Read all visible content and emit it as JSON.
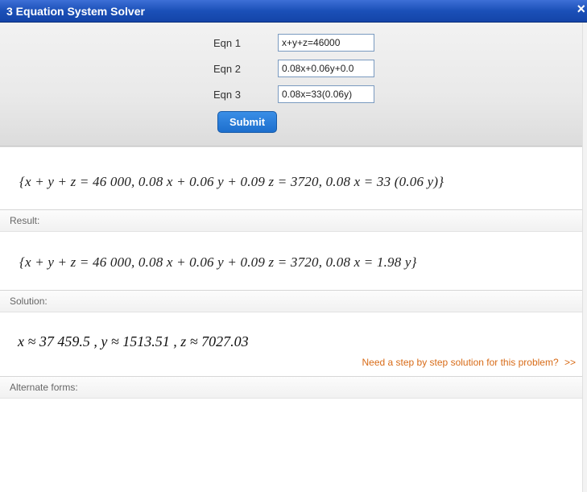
{
  "window": {
    "title": "3 Equation System Solver",
    "close_glyph": "×"
  },
  "form": {
    "rows": [
      {
        "label": "Eqn 1",
        "value": "x+y+z=46000"
      },
      {
        "label": "Eqn 2",
        "value": "0.08x+0.06y+0.0"
      },
      {
        "label": "Eqn 3",
        "value": "0.08x=33(0.06y)"
      }
    ],
    "submit_label": "Submit"
  },
  "input_echo": "{x + y + z = 46 000, 0.08 x + 0.06 y + 0.09 z = 3720, 0.08 x = 33 (0.06 y)}",
  "sections": {
    "result": {
      "header": "Result:",
      "body": "{x + y + z = 46 000, 0.08 x + 0.06 y + 0.09 z = 3720, 0.08 x = 1.98 y}"
    },
    "solution": {
      "header": "Solution:",
      "body": "x ≈ 37 459.5 ,   y ≈ 1513.51 ,   z ≈ 7027.03"
    },
    "alternate_forms": {
      "header": "Alternate forms:"
    }
  },
  "help_link": {
    "text": "Need a step by step solution for this problem?",
    "chevrons": ">>"
  },
  "colors": {
    "titlebar_top": "#3d6fd6",
    "titlebar_bottom": "#1444a8",
    "form_bg_top": "#f2f2f2",
    "form_bg_bottom": "#dcdcdc",
    "submit_top": "#3a8ee6",
    "submit_bottom": "#1d6fce",
    "help_link": "#d86b17",
    "section_header_text": "#666666",
    "border_gray": "#d6d6d6"
  }
}
